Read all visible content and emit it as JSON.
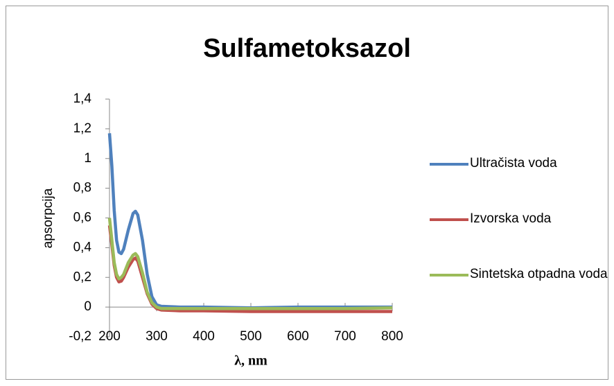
{
  "chart_data": {
    "type": "line",
    "title": "Sulfametoksazol",
    "x_label": "λ, nm",
    "y_label": "apsorpcija",
    "x": [
      200,
      205,
      210,
      215,
      220,
      225,
      230,
      240,
      250,
      255,
      260,
      270,
      280,
      290,
      300,
      310,
      350,
      400,
      500,
      600,
      700,
      800
    ],
    "series": [
      {
        "name": "Ultračista voda",
        "color": "#4f81bd",
        "values": [
          1.17,
          0.95,
          0.65,
          0.45,
          0.37,
          0.36,
          0.39,
          0.52,
          0.63,
          0.645,
          0.62,
          0.45,
          0.22,
          0.07,
          0.015,
          0.005,
          0,
          0,
          -0.005,
          0,
          0,
          0
        ]
      },
      {
        "name": "Izvorska voda",
        "color": "#c0504d",
        "values": [
          0.55,
          0.42,
          0.28,
          0.2,
          0.17,
          0.175,
          0.2,
          0.27,
          0.32,
          0.33,
          0.31,
          0.2,
          0.09,
          0.02,
          -0.01,
          -0.02,
          -0.025,
          -0.025,
          -0.03,
          -0.03,
          -0.03,
          -0.03
        ]
      },
      {
        "name": "Sintetska otpadna voda",
        "color": "#9bbb59",
        "values": [
          0.6,
          0.45,
          0.3,
          0.22,
          0.19,
          0.2,
          0.22,
          0.3,
          0.35,
          0.36,
          0.34,
          0.23,
          0.1,
          0.03,
          0,
          -0.01,
          -0.01,
          -0.01,
          -0.01,
          -0.01,
          -0.01,
          -0.005
        ]
      }
    ],
    "xlim": [
      200,
      800
    ],
    "xticks": [
      200,
      300,
      400,
      500,
      600,
      700,
      800
    ],
    "ylim": [
      -0.2,
      1.4
    ],
    "yticks": [
      {
        "value": -0.2,
        "label": "-0,2"
      },
      0,
      {
        "value": 0.2,
        "label": "0,2"
      },
      {
        "value": 0.4,
        "label": "0,4"
      },
      {
        "value": 0.6,
        "label": "0,6"
      },
      {
        "value": 0.8,
        "label": "0,8"
      },
      1,
      {
        "value": 1.2,
        "label": "1,2"
      },
      {
        "value": 1.4,
        "label": "1,4"
      }
    ],
    "legend": "right"
  }
}
